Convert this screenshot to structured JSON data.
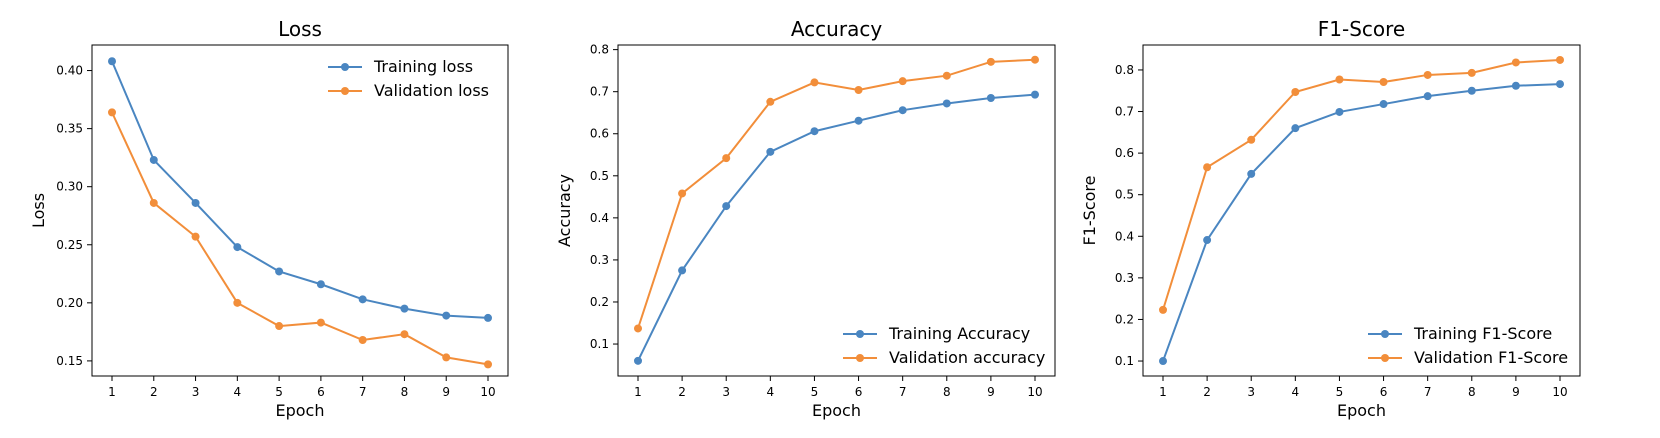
{
  "chart_data": [
    {
      "type": "line",
      "title": "Loss",
      "xlabel": "Epoch",
      "ylabel": "Loss",
      "x": [
        1,
        2,
        3,
        4,
        5,
        6,
        7,
        8,
        9,
        10
      ],
      "xticks": [
        "1",
        "2",
        "3",
        "4",
        "5",
        "6",
        "7",
        "8",
        "9",
        "10"
      ],
      "ylim": [
        0.137,
        0.422
      ],
      "yticks": [
        "0.15",
        "0.20",
        "0.25",
        "0.30",
        "0.35",
        "0.40"
      ],
      "grid": false,
      "legend_position": "upper-right",
      "series": [
        {
          "name": "Training loss",
          "color": "#4a86c1",
          "values": [
            0.408,
            0.323,
            0.286,
            0.248,
            0.227,
            0.216,
            0.203,
            0.195,
            0.189,
            0.187
          ]
        },
        {
          "name": "Validation loss",
          "color": "#f28e3a",
          "values": [
            0.364,
            0.286,
            0.257,
            0.2,
            0.18,
            0.183,
            0.168,
            0.173,
            0.153,
            0.147
          ]
        }
      ]
    },
    {
      "type": "line",
      "title": "Accuracy",
      "xlabel": "Epoch",
      "ylabel": "Accuracy",
      "x": [
        1,
        2,
        3,
        4,
        5,
        6,
        7,
        8,
        9,
        10
      ],
      "xticks": [
        "1",
        "2",
        "3",
        "4",
        "5",
        "6",
        "7",
        "8",
        "9",
        "10"
      ],
      "ylim": [
        0.024,
        0.811
      ],
      "yticks": [
        "0.1",
        "0.2",
        "0.3",
        "0.4",
        "0.5",
        "0.6",
        "0.7",
        "0.8"
      ],
      "grid": false,
      "legend_position": "lower-right",
      "series": [
        {
          "name": "Training Accuracy",
          "color": "#4a86c1",
          "values": [
            0.06,
            0.275,
            0.428,
            0.557,
            0.606,
            0.631,
            0.656,
            0.672,
            0.685,
            0.693
          ]
        },
        {
          "name": "Validation accuracy",
          "color": "#f28e3a",
          "values": [
            0.137,
            0.458,
            0.542,
            0.676,
            0.722,
            0.704,
            0.725,
            0.738,
            0.771,
            0.776
          ]
        }
      ]
    },
    {
      "type": "line",
      "title": "F1-Score",
      "xlabel": "Epoch",
      "ylabel": "F1-Score",
      "x": [
        1,
        2,
        3,
        4,
        5,
        6,
        7,
        8,
        9,
        10
      ],
      "xticks": [
        "1",
        "2",
        "3",
        "4",
        "5",
        "6",
        "7",
        "8",
        "9",
        "10"
      ],
      "ylim": [
        0.064,
        0.86
      ],
      "yticks": [
        "0.1",
        "0.2",
        "0.3",
        "0.4",
        "0.5",
        "0.6",
        "0.7",
        "0.8"
      ],
      "grid": false,
      "legend_position": "lower-right",
      "series": [
        {
          "name": "Training F1-Score",
          "color": "#4a86c1",
          "values": [
            0.1,
            0.391,
            0.55,
            0.66,
            0.699,
            0.718,
            0.737,
            0.75,
            0.762,
            0.766
          ]
        },
        {
          "name": "Validation F1-Score",
          "color": "#f28e3a",
          "values": [
            0.223,
            0.566,
            0.632,
            0.747,
            0.777,
            0.771,
            0.788,
            0.793,
            0.818,
            0.824
          ]
        }
      ]
    }
  ]
}
